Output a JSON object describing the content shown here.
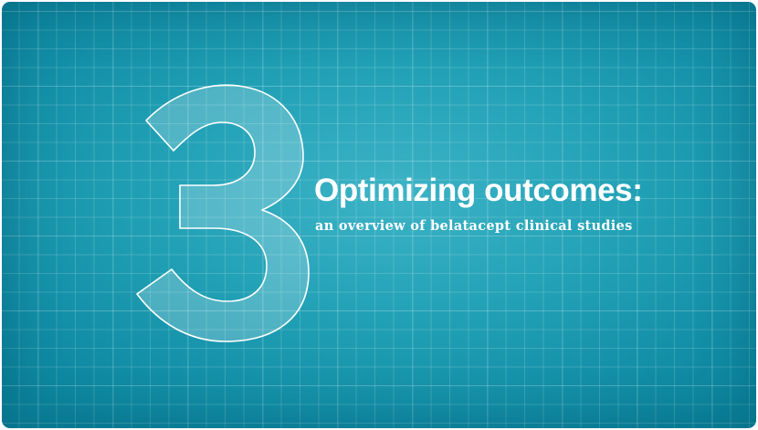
{
  "slide": {
    "number": "3",
    "title": "Optimizing outcomes:",
    "subtitle": "an overview of belatacept clinical studies"
  },
  "colors": {
    "background_center": "#3db3c6",
    "background_edge": "#0b849c",
    "grid_line": "rgba(255,255,255,0.16)",
    "text": "#ffffff"
  }
}
